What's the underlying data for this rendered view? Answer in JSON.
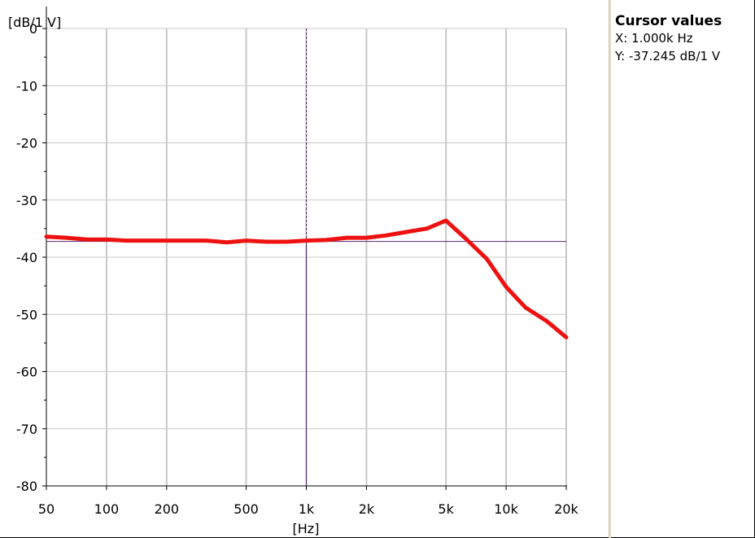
{
  "chart_data": {
    "type": "line",
    "ylabel": "[dB/1 V]",
    "xlabel": "[Hz]",
    "x_scale": "log",
    "xlim": [
      50,
      20000
    ],
    "ylim": [
      -80,
      0
    ],
    "grid": true,
    "x_ticks": [
      50,
      100,
      200,
      500,
      1000,
      2000,
      5000,
      10000,
      20000
    ],
    "x_tick_labels": [
      "50",
      "100",
      "200",
      "500",
      "1k",
      "2k",
      "5k",
      "10k",
      "20k"
    ],
    "y_ticks": [
      0,
      -10,
      -20,
      -30,
      -40,
      -50,
      -60,
      -70,
      -80
    ],
    "y_tick_labels": [
      "0",
      "-10",
      "-20",
      "-30",
      "-40",
      "-50",
      "-60",
      "-70",
      "-80"
    ],
    "series": [
      {
        "color": "#ee1111",
        "x": [
          50,
          63,
          80,
          100,
          125,
          160,
          200,
          250,
          315,
          400,
          500,
          630,
          800,
          1000,
          1250,
          1600,
          2000,
          2500,
          3150,
          4000,
          5000,
          6300,
          8000,
          10000,
          12500,
          16000,
          20000
        ],
        "y": [
          -36.4,
          -36.6,
          -36.9,
          -36.9,
          -37.1,
          -37.1,
          -37.1,
          -37.1,
          -37.1,
          -37.4,
          -37.1,
          -37.3,
          -37.3,
          -37.1,
          -37.0,
          -36.6,
          -36.6,
          -36.2,
          -35.6,
          -35.0,
          -33.6,
          -36.8,
          -40.3,
          -45.2,
          -48.8,
          -51.2,
          -54.0
        ]
      }
    ],
    "cursor": {
      "x": 1000,
      "y": -37.245,
      "color": "#5a2a6e"
    }
  },
  "cursor_panel": {
    "title": "Cursor values",
    "x_line": "X: 1.000k Hz",
    "y_line": "Y: -37.245 dB/1 V"
  }
}
